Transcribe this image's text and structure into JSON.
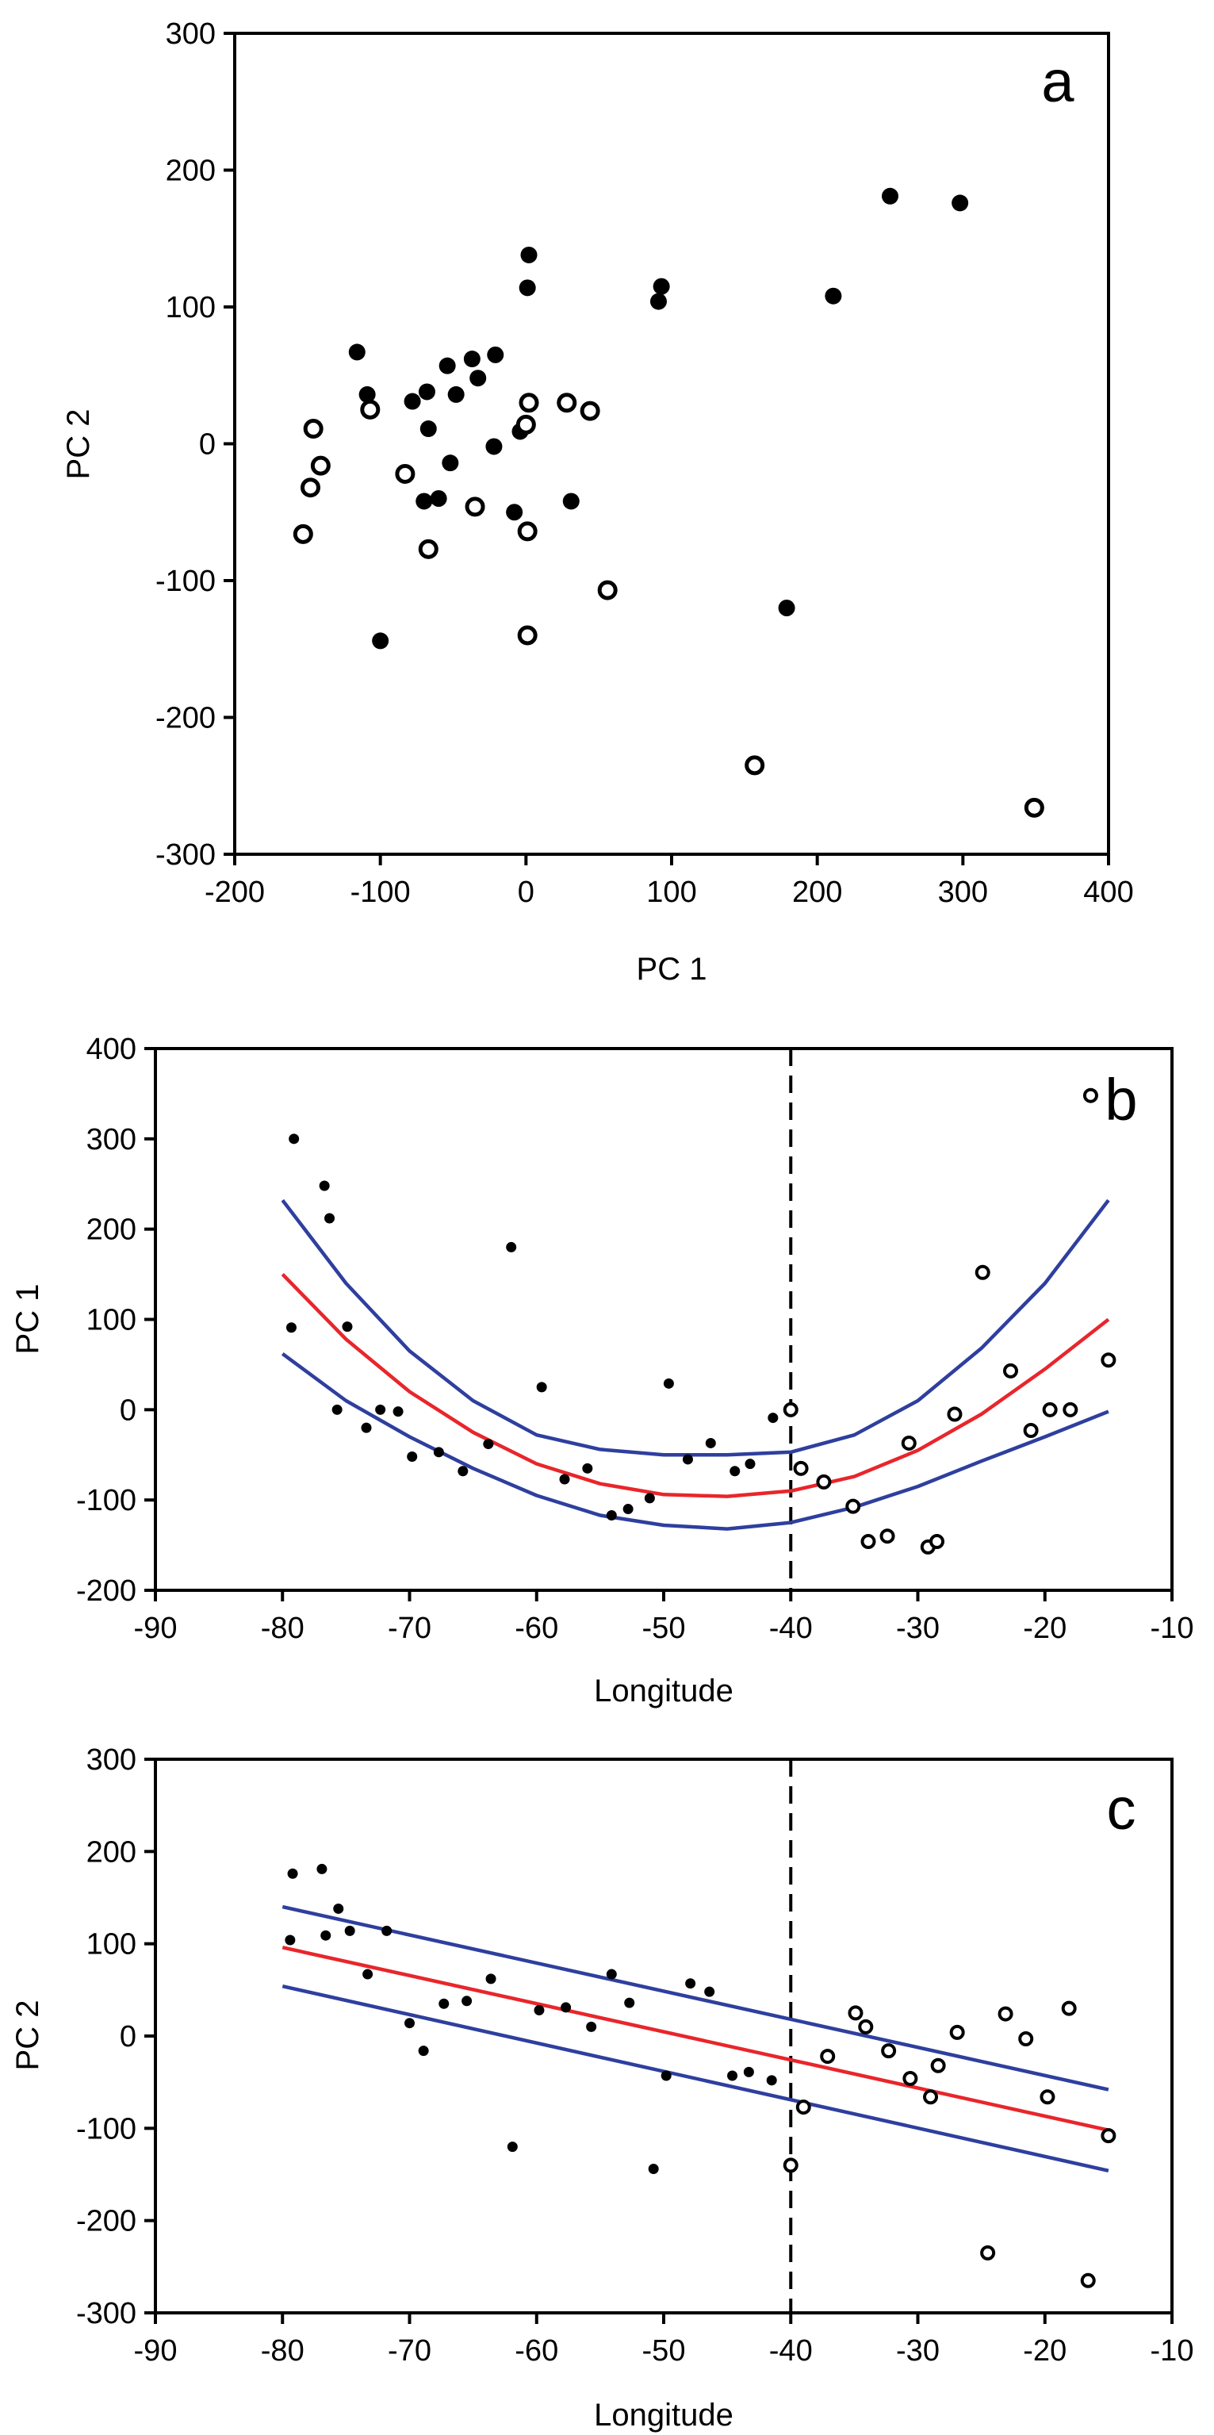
{
  "chart_data": [
    {
      "type": "scatter",
      "panel_label": "a",
      "xlabel": "PC 1",
      "ylabel": "PC 2",
      "xlim": [
        -200,
        400
      ],
      "ylim": [
        -300,
        300
      ],
      "x_ticks": [
        -200,
        -100,
        0,
        100,
        200,
        300,
        400
      ],
      "y_ticks": [
        -300,
        -200,
        -100,
        0,
        100,
        200,
        300
      ],
      "x_tick_labels": [
        "-200",
        "-100",
        "0",
        "100",
        "200",
        "300",
        "400"
      ],
      "y_tick_labels": [
        "-300",
        "-200",
        "-100",
        "0",
        "100",
        "200",
        "300"
      ],
      "grid": false,
      "series": [
        {
          "name": "filled",
          "marker": "filled-circle",
          "color": "#000000",
          "points": [
            [
              250,
              181
            ],
            [
              298,
              176
            ],
            [
              211,
              108
            ],
            [
              93,
              115
            ],
            [
              91,
              104
            ],
            [
              2,
              138
            ],
            [
              1,
              114
            ],
            [
              -116,
              67
            ],
            [
              -109,
              36
            ],
            [
              -78,
              31
            ],
            [
              -68,
              38
            ],
            [
              -54,
              57
            ],
            [
              -37,
              62
            ],
            [
              -21,
              65
            ],
            [
              -33,
              48
            ],
            [
              -48,
              36
            ],
            [
              -67,
              11
            ],
            [
              -52,
              -14
            ],
            [
              -22,
              -2
            ],
            [
              -4,
              9
            ],
            [
              -60,
              -40
            ],
            [
              -70,
              -42
            ],
            [
              31,
              -42
            ],
            [
              -8,
              -50
            ],
            [
              179,
              -120
            ],
            [
              -100,
              -144
            ]
          ]
        },
        {
          "name": "open",
          "marker": "open-circle",
          "color": "#000000",
          "points": [
            [
              -146,
              11
            ],
            [
              -141,
              -16
            ],
            [
              -148,
              -32
            ],
            [
              -153,
              -66
            ],
            [
              -107,
              25
            ],
            [
              -83,
              -22
            ],
            [
              -67,
              -77
            ],
            [
              -35,
              -46
            ],
            [
              2,
              30
            ],
            [
              0,
              14
            ],
            [
              28,
              30
            ],
            [
              44,
              24
            ],
            [
              1,
              -64
            ],
            [
              56,
              -107
            ],
            [
              1,
              -140
            ],
            [
              157,
              -235
            ],
            [
              349,
              -266
            ]
          ]
        }
      ]
    },
    {
      "type": "scatter",
      "panel_label": "b",
      "xlabel": "Longitude",
      "ylabel": "PC 1",
      "xlim": [
        -90,
        -10
      ],
      "ylim": [
        -200,
        400
      ],
      "x_ticks": [
        -90,
        -80,
        -70,
        -60,
        -50,
        -40,
        -30,
        -20,
        -10
      ],
      "y_ticks": [
        -200,
        -100,
        0,
        100,
        200,
        300,
        400
      ],
      "x_tick_labels": [
        "-90",
        "-80",
        "-70",
        "-60",
        "-50",
        "-40",
        "-30",
        "-20",
        "-10"
      ],
      "y_tick_labels": [
        "-200",
        "-100",
        "0",
        "100",
        "200",
        "300",
        "400"
      ],
      "grid": false,
      "reference_line_x": -40,
      "series": [
        {
          "name": "filled",
          "marker": "filled-circle-small",
          "color": "#000000",
          "points": [
            [
              -79.1,
              300
            ],
            [
              -76.7,
              248
            ],
            [
              -76.3,
              212
            ],
            [
              -74.9,
              92
            ],
            [
              -79.3,
              91
            ],
            [
              -75.7,
              0
            ],
            [
              -73.4,
              -20
            ],
            [
              -72.3,
              0
            ],
            [
              -70.9,
              -2
            ],
            [
              -69.8,
              -52
            ],
            [
              -67.7,
              -47
            ],
            [
              -65.8,
              -68
            ],
            [
              -63.8,
              -38
            ],
            [
              -62.0,
              180
            ],
            [
              -59.6,
              25
            ],
            [
              -57.8,
              -77
            ],
            [
              -56.0,
              -65
            ],
            [
              -54.1,
              -117
            ],
            [
              -52.8,
              -110
            ],
            [
              -51.1,
              -98
            ],
            [
              -49.6,
              29
            ],
            [
              -48.1,
              -55
            ],
            [
              -46.3,
              -37
            ],
            [
              -44.4,
              -68
            ],
            [
              -43.2,
              -60
            ],
            [
              -41.4,
              -9
            ]
          ]
        },
        {
          "name": "open",
          "marker": "open-circle-small",
          "color": "#000000",
          "points": [
            [
              -40.0,
              0
            ],
            [
              -39.2,
              -65
            ],
            [
              -37.4,
              -80
            ],
            [
              -35.1,
              -107
            ],
            [
              -33.9,
              -146
            ],
            [
              -32.4,
              -140
            ],
            [
              -30.7,
              -37
            ],
            [
              -29.2,
              -152
            ],
            [
              -28.5,
              -146
            ],
            [
              -27.1,
              -5
            ],
            [
              -24.9,
              152
            ],
            [
              -22.7,
              43
            ],
            [
              -21.1,
              -23
            ],
            [
              -19.6,
              0
            ],
            [
              -18.0,
              0
            ],
            [
              -16.4,
              348
            ],
            [
              -15.0,
              55
            ]
          ]
        }
      ],
      "fit_lines": [
        {
          "name": "fit",
          "color": "#e8262b",
          "points": [
            [
              -80,
              150
            ],
            [
              -75,
              78
            ],
            [
              -70,
              20
            ],
            [
              -65,
              -25
            ],
            [
              -60,
              -60
            ],
            [
              -55,
              -82
            ],
            [
              -50,
              -94
            ],
            [
              -45,
              -96
            ],
            [
              -40,
              -90
            ],
            [
              -35,
              -74
            ],
            [
              -30,
              -45
            ],
            [
              -25,
              -5
            ],
            [
              -20,
              45
            ],
            [
              -15,
              100
            ]
          ]
        },
        {
          "name": "upper-confidence",
          "color": "#2e3f9e",
          "points": [
            [
              -80,
              232
            ],
            [
              -75,
              140
            ],
            [
              -70,
              65
            ],
            [
              -65,
              10
            ],
            [
              -60,
              -28
            ],
            [
              -55,
              -44
            ],
            [
              -50,
              -50
            ],
            [
              -45,
              -50
            ],
            [
              -40,
              -47
            ],
            [
              -35,
              -28
            ],
            [
              -30,
              10
            ],
            [
              -25,
              68
            ],
            [
              -20,
              140
            ],
            [
              -15,
              232
            ]
          ]
        },
        {
          "name": "lower-confidence",
          "color": "#2e3f9e",
          "points": [
            [
              -80,
              62
            ],
            [
              -75,
              10
            ],
            [
              -70,
              -30
            ],
            [
              -65,
              -65
            ],
            [
              -60,
              -95
            ],
            [
              -55,
              -117
            ],
            [
              -50,
              -128
            ],
            [
              -45,
              -132
            ],
            [
              -40,
              -125
            ],
            [
              -35,
              -108
            ],
            [
              -30,
              -85
            ],
            [
              -25,
              -57
            ],
            [
              -20,
              -30
            ],
            [
              -15,
              -2
            ]
          ]
        }
      ]
    },
    {
      "type": "scatter",
      "panel_label": "c",
      "xlabel": "Longitude",
      "ylabel": "PC 2",
      "xlim": [
        -90,
        -10
      ],
      "ylim": [
        -300,
        300
      ],
      "x_ticks": [
        -90,
        -80,
        -70,
        -60,
        -50,
        -40,
        -30,
        -20,
        -10
      ],
      "y_ticks": [
        -300,
        -200,
        -100,
        0,
        100,
        200,
        300
      ],
      "x_tick_labels": [
        "-90",
        "-80",
        "-70",
        "-60",
        "-50",
        "-40",
        "-30",
        "-20",
        "-10"
      ],
      "y_tick_labels": [
        "-300",
        "-200",
        "-100",
        "0",
        "100",
        "200",
        "300"
      ],
      "grid": false,
      "reference_line_x": -40,
      "series": [
        {
          "name": "filled",
          "marker": "filled-circle-small",
          "color": "#000000",
          "points": [
            [
              -79.2,
              176
            ],
            [
              -76.9,
              181
            ],
            [
              -75.6,
              138
            ],
            [
              -74.7,
              114
            ],
            [
              -79.4,
              104
            ],
            [
              -76.6,
              109
            ],
            [
              -73.3,
              67
            ],
            [
              -71.8,
              114
            ],
            [
              -70.0,
              14
            ],
            [
              -68.9,
              -16
            ],
            [
              -67.3,
              35
            ],
            [
              -65.5,
              38
            ],
            [
              -63.6,
              62
            ],
            [
              -61.9,
              -120
            ],
            [
              -59.8,
              28
            ],
            [
              -57.7,
              31
            ],
            [
              -55.7,
              10
            ],
            [
              -54.1,
              67
            ],
            [
              -52.7,
              36
            ],
            [
              -50.8,
              -144
            ],
            [
              -49.8,
              -43
            ],
            [
              -47.9,
              57
            ],
            [
              -46.4,
              48
            ],
            [
              -44.6,
              -43
            ],
            [
              -43.3,
              -39
            ],
            [
              -41.5,
              -48
            ]
          ]
        },
        {
          "name": "open",
          "marker": "open-circle-small",
          "color": "#000000",
          "points": [
            [
              -40.0,
              -140
            ],
            [
              -39.0,
              -77
            ],
            [
              -37.1,
              -22
            ],
            [
              -34.9,
              25
            ],
            [
              -34.1,
              10
            ],
            [
              -32.3,
              -16
            ],
            [
              -30.6,
              -46
            ],
            [
              -29.0,
              -66
            ],
            [
              -28.4,
              -32
            ],
            [
              -26.9,
              4
            ],
            [
              -24.5,
              -235
            ],
            [
              -23.1,
              24
            ],
            [
              -21.5,
              -3
            ],
            [
              -19.8,
              -66
            ],
            [
              -18.1,
              30
            ],
            [
              -16.6,
              -265
            ],
            [
              -15.0,
              -108
            ]
          ]
        }
      ],
      "fit_lines": [
        {
          "name": "fit",
          "color": "#e8262b",
          "points": [
            [
              -80,
              96
            ],
            [
              -15,
              -102
            ]
          ]
        },
        {
          "name": "upper-confidence",
          "color": "#2e3f9e",
          "points": [
            [
              -80,
              140
            ],
            [
              -15,
              -58
            ]
          ]
        },
        {
          "name": "lower-confidence",
          "color": "#2e3f9e",
          "points": [
            [
              -80,
              54
            ],
            [
              -15,
              -146
            ]
          ]
        }
      ]
    }
  ]
}
